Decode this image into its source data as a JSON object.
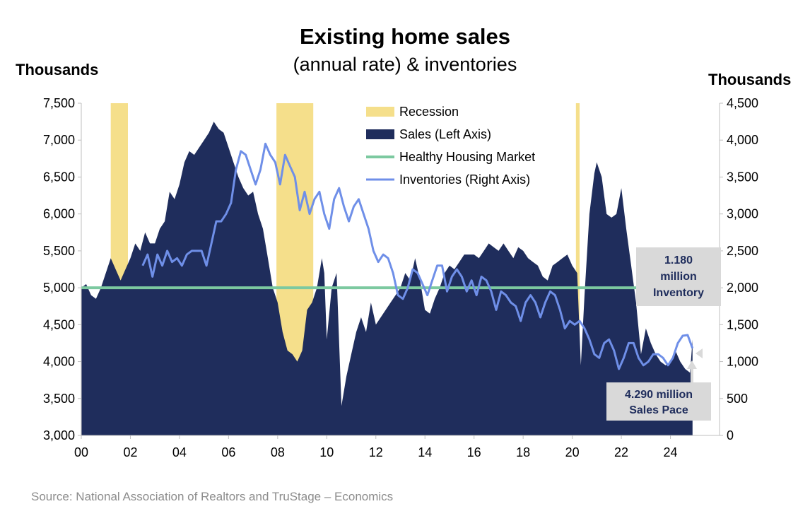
{
  "title": "Existing home sales",
  "subtitle": "(annual rate) & inventories",
  "left_axis_label": "Thousands",
  "right_axis_label": "Thousands",
  "source": "Source: National Association of Realtors and TruStage – Economics",
  "colors": {
    "sales": "#1f2d5c",
    "recession": "#f5df8b",
    "healthy": "#7cc9a0",
    "inventory": "#6f8fe8",
    "callout_box": "#d9d9d9"
  },
  "callouts": {
    "inventory": [
      "1.180",
      "million",
      "Inventory"
    ],
    "sales": [
      "4.290 million",
      "Sales Pace"
    ]
  },
  "chart_data": {
    "type": "area",
    "x_range": [
      2000,
      2026
    ],
    "x_ticks": [
      "00",
      "02",
      "04",
      "06",
      "08",
      "10",
      "12",
      "14",
      "16",
      "18",
      "20",
      "22",
      "24"
    ],
    "ylim_left": [
      3000,
      7500
    ],
    "y_ticks_left": [
      "3,000",
      "3,500",
      "4,000",
      "4,500",
      "5,000",
      "5,500",
      "6,000",
      "6,500",
      "7,000",
      "7,500"
    ],
    "ylim_right": [
      0,
      4500
    ],
    "y_ticks_right": [
      "0",
      "500",
      "1,000",
      "1,500",
      "2,000",
      "2,500",
      "3,000",
      "3,500",
      "4,000",
      "4,500"
    ],
    "legend": [
      "Recession",
      "Sales (Left Axis)",
      "Healthy Housing Market",
      "Inventories (Right Axis)"
    ],
    "recessions": [
      [
        2001.2,
        2001.9
      ],
      [
        2007.95,
        2009.45
      ],
      [
        2020.15,
        2020.3
      ]
    ],
    "healthy_housing_market": 5000,
    "sales": {
      "name": "Sales (Left Axis)",
      "axis": "left",
      "x": [
        2000.0,
        2000.2,
        2000.4,
        2000.6,
        2000.8,
        2001.0,
        2001.2,
        2001.4,
        2001.6,
        2001.8,
        2002.0,
        2002.2,
        2002.4,
        2002.6,
        2002.8,
        2003.0,
        2003.2,
        2003.4,
        2003.6,
        2003.8,
        2004.0,
        2004.2,
        2004.4,
        2004.6,
        2004.8,
        2005.0,
        2005.2,
        2005.4,
        2005.6,
        2005.8,
        2006.0,
        2006.2,
        2006.4,
        2006.6,
        2006.8,
        2007.0,
        2007.2,
        2007.4,
        2007.6,
        2007.8,
        2008.0,
        2008.2,
        2008.4,
        2008.6,
        2008.8,
        2009.0,
        2009.2,
        2009.4,
        2009.6,
        2009.8,
        2009.9,
        2010.0,
        2010.2,
        2010.4,
        2010.6,
        2010.8,
        2011.0,
        2011.2,
        2011.4,
        2011.6,
        2011.8,
        2012.0,
        2012.2,
        2012.4,
        2012.6,
        2012.8,
        2013.0,
        2013.2,
        2013.4,
        2013.6,
        2013.8,
        2014.0,
        2014.2,
        2014.4,
        2014.6,
        2014.8,
        2015.0,
        2015.2,
        2015.4,
        2015.6,
        2015.8,
        2016.0,
        2016.2,
        2016.4,
        2016.6,
        2016.8,
        2017.0,
        2017.2,
        2017.4,
        2017.6,
        2017.8,
        2018.0,
        2018.2,
        2018.4,
        2018.6,
        2018.8,
        2019.0,
        2019.2,
        2019.4,
        2019.6,
        2019.8,
        2020.0,
        2020.2,
        2020.35,
        2020.5,
        2020.7,
        2020.9,
        2021.0,
        2021.2,
        2021.4,
        2021.6,
        2021.8,
        2022.0,
        2022.2,
        2022.4,
        2022.6,
        2022.8,
        2023.0,
        2023.2,
        2023.4,
        2023.6,
        2023.8,
        2024.0,
        2024.2,
        2024.4,
        2024.6,
        2024.8,
        2024.9
      ],
      "y": [
        5000,
        5050,
        4900,
        4850,
        5000,
        5200,
        5400,
        5250,
        5100,
        5250,
        5400,
        5600,
        5500,
        5750,
        5600,
        5600,
        5800,
        5900,
        6300,
        6200,
        6400,
        6700,
        6850,
        6800,
        6900,
        7000,
        7100,
        7250,
        7150,
        7100,
        6900,
        6700,
        6500,
        6350,
        6250,
        6300,
        6000,
        5800,
        5400,
        5000,
        4800,
        4400,
        4150,
        4100,
        4000,
        4150,
        4700,
        4800,
        5000,
        5400,
        5200,
        4300,
        5000,
        5200,
        3400,
        3800,
        4100,
        4400,
        4600,
        4400,
        4800,
        4500,
        4600,
        4700,
        4800,
        4900,
        5000,
        5200,
        5100,
        5400,
        5100,
        4700,
        4650,
        4850,
        5000,
        5200,
        5300,
        5250,
        5350,
        5450,
        5450,
        5450,
        5400,
        5500,
        5600,
        5550,
        5500,
        5600,
        5500,
        5400,
        5550,
        5500,
        5400,
        5350,
        5300,
        5150,
        5100,
        5300,
        5350,
        5400,
        5450,
        5300,
        5200,
        3950,
        4900,
        6000,
        6550,
        6700,
        6500,
        6000,
        5950,
        6000,
        6350,
        5800,
        5300,
        4800,
        4100,
        4450,
        4250,
        4100,
        4000,
        3950,
        4000,
        4150,
        4000,
        3900,
        3850,
        4300
      ],
      "latest_label": "4.290 million Sales Pace"
    },
    "inventories": {
      "name": "Inventories (Right Axis)",
      "axis": "right",
      "x": [
        2002.5,
        2002.7,
        2002.9,
        2003.1,
        2003.3,
        2003.5,
        2003.7,
        2003.9,
        2004.1,
        2004.3,
        2004.5,
        2004.7,
        2004.9,
        2005.1,
        2005.3,
        2005.5,
        2005.7,
        2005.9,
        2006.1,
        2006.3,
        2006.5,
        2006.7,
        2006.9,
        2007.1,
        2007.3,
        2007.5,
        2007.7,
        2007.9,
        2008.1,
        2008.3,
        2008.5,
        2008.7,
        2008.9,
        2009.1,
        2009.3,
        2009.5,
        2009.7,
        2009.9,
        2010.1,
        2010.3,
        2010.5,
        2010.7,
        2010.9,
        2011.1,
        2011.3,
        2011.5,
        2011.7,
        2011.9,
        2012.1,
        2012.3,
        2012.5,
        2012.7,
        2012.9,
        2013.1,
        2013.3,
        2013.5,
        2013.7,
        2013.9,
        2014.1,
        2014.3,
        2014.5,
        2014.7,
        2014.9,
        2015.1,
        2015.3,
        2015.5,
        2015.7,
        2015.9,
        2016.1,
        2016.3,
        2016.5,
        2016.7,
        2016.9,
        2017.1,
        2017.3,
        2017.5,
        2017.7,
        2017.9,
        2018.1,
        2018.3,
        2018.5,
        2018.7,
        2018.9,
        2019.1,
        2019.3,
        2019.5,
        2019.7,
        2019.9,
        2020.1,
        2020.3,
        2020.5,
        2020.7,
        2020.9,
        2021.1,
        2021.3,
        2021.5,
        2021.7,
        2021.9,
        2022.1,
        2022.3,
        2022.5,
        2022.7,
        2022.9,
        2023.1,
        2023.3,
        2023.5,
        2023.7,
        2023.9,
        2024.1,
        2024.3,
        2024.5,
        2024.7,
        2024.9
      ],
      "y": [
        2300,
        2450,
        2150,
        2450,
        2300,
        2500,
        2350,
        2400,
        2300,
        2450,
        2500,
        2500,
        2500,
        2300,
        2600,
        2900,
        2900,
        3000,
        3150,
        3600,
        3850,
        3800,
        3600,
        3400,
        3600,
        3950,
        3800,
        3700,
        3400,
        3800,
        3650,
        3500,
        3050,
        3300,
        3000,
        3200,
        3300,
        3000,
        2800,
        3200,
        3350,
        3100,
        2900,
        3100,
        3200,
        3000,
        2800,
        2500,
        2350,
        2450,
        2400,
        2200,
        1900,
        1850,
        2000,
        2250,
        2200,
        2050,
        1900,
        2100,
        2300,
        2300,
        1950,
        2150,
        2250,
        2150,
        1950,
        2100,
        1900,
        2150,
        2100,
        1950,
        1700,
        1950,
        1900,
        1800,
        1750,
        1550,
        1800,
        1900,
        1800,
        1600,
        1800,
        1950,
        1900,
        1700,
        1450,
        1550,
        1500,
        1550,
        1450,
        1300,
        1100,
        1050,
        1250,
        1300,
        1150,
        900,
        1050,
        1250,
        1250,
        1050,
        950,
        1000,
        1100,
        1100,
        1050,
        950,
        1050,
        1250,
        1350,
        1360,
        1180
      ],
      "latest_label": "1.180 million Inventory"
    }
  }
}
